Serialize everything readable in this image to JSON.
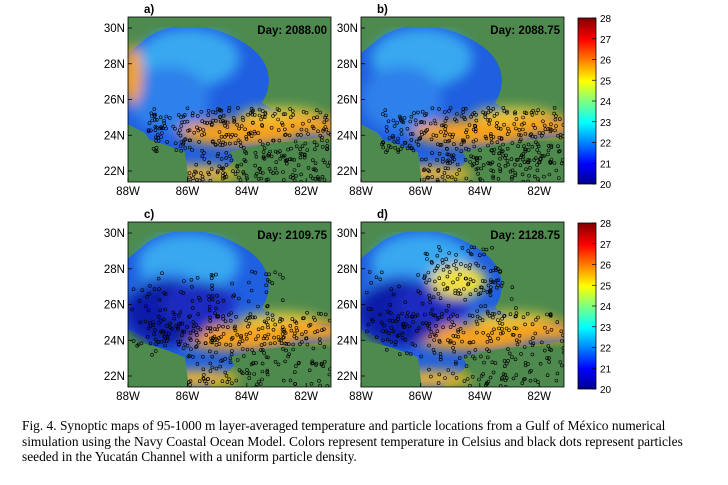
{
  "figure": {
    "panels": [
      {
        "letter": "a)",
        "day": "Day: 2088.00"
      },
      {
        "letter": "b)",
        "day": "Day: 2088.75"
      },
      {
        "letter": "c)",
        "day": "Day: 2109.75"
      },
      {
        "letter": "d)",
        "day": "Day: 2128.75"
      }
    ],
    "lat_labels": [
      "30N",
      "28N",
      "26N",
      "24N",
      "22N"
    ],
    "lon_labels": [
      "88W",
      "86W",
      "84W",
      "82W"
    ],
    "colorbar_ticks": [
      "28",
      "27",
      "26",
      "25",
      "24",
      "23",
      "22",
      "21",
      "20"
    ],
    "caption": "Fig. 4. Synoptic maps of 95-1000 m layer-averaged temperature and particle locations from a Gulf of México numerical simulation using the Navy Coastal Ocean Model. Colors represent temperature in Celsius and black dots represent particles seeded in the Yucatán Channel with a uniform particle density."
  },
  "colors": {
    "land": "#4e8a4e",
    "deep_blue": "#0f1ea8",
    "warm": "#f7a21a",
    "hot": "#d8322a"
  }
}
